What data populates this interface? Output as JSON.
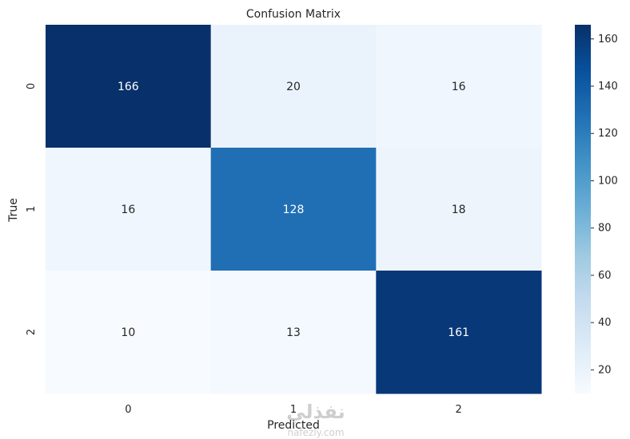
{
  "chart_data": {
    "type": "heatmap",
    "title": "Confusion Matrix",
    "xlabel": "Predicted",
    "ylabel": "True",
    "x_categories": [
      "0",
      "1",
      "2"
    ],
    "y_categories": [
      "0",
      "1",
      "2"
    ],
    "values": [
      [
        166,
        20,
        16
      ],
      [
        16,
        128,
        18
      ],
      [
        10,
        13,
        161
      ]
    ],
    "colormap": "Blues",
    "color_range": [
      10,
      166
    ],
    "colorbar_ticks": [
      20,
      40,
      60,
      80,
      100,
      120,
      140,
      160
    ],
    "grid": false
  },
  "watermark": {
    "text": "نفذلي",
    "subtext": "nafezly.com"
  }
}
